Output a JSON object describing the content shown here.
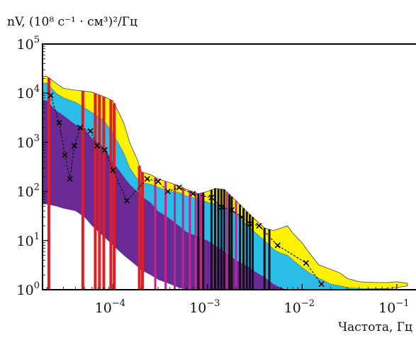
{
  "chart_data": {
    "type": "area",
    "ylabel": "nV, (10⁸ с⁻¹ · см³)²/Гц",
    "xlabel": "Частота, Гц",
    "x_scale": "log",
    "y_scale": "log",
    "xlim": [
      1.8e-05,
      0.2
    ],
    "ylim": [
      1,
      100000
    ],
    "x_ticks": [
      {
        "value": 0.0001,
        "label": "10",
        "exp": "−4"
      },
      {
        "value": 0.001,
        "label": "10",
        "exp": "−3"
      },
      {
        "value": 0.01,
        "label": "10",
        "exp": "−2"
      },
      {
        "value": 0.1,
        "label": "10",
        "exp": "−1"
      }
    ],
    "y_ticks": [
      {
        "value": 1,
        "label": "10",
        "exp": "0"
      },
      {
        "value": 10,
        "label": "10",
        "exp": "1"
      },
      {
        "value": 100,
        "label": "10",
        "exp": "2"
      },
      {
        "value": 1000,
        "label": "10",
        "exp": "3"
      },
      {
        "value": 10000,
        "label": "10",
        "exp": "4"
      },
      {
        "value": 100000,
        "label": "10",
        "exp": "5"
      }
    ],
    "grid": false,
    "colors": {
      "yellow": "#fff200",
      "cyan": "#29bde8",
      "purple": "#6a2a96",
      "red": "#e21c24",
      "magenta": "#c2268e",
      "black": "#111111"
    },
    "bands": [
      {
        "color": "yellow",
        "upper": [
          [
            1.8e-05,
            22000
          ],
          [
            2e-05,
            22000
          ],
          [
            2.5e-05,
            16000
          ],
          [
            3e-05,
            12500
          ],
          [
            4e-05,
            11500
          ],
          [
            5e-05,
            11000
          ],
          [
            6e-05,
            10500
          ],
          [
            8e-05,
            8500
          ],
          [
            0.0001,
            7000
          ],
          [
            0.00013,
            2500
          ],
          [
            0.00015,
            1000
          ],
          [
            0.00018,
            450
          ],
          [
            0.0002,
            250
          ],
          [
            0.00025,
            220
          ],
          [
            0.0003,
            180
          ],
          [
            0.0004,
            150
          ],
          [
            0.0005,
            130
          ],
          [
            0.0006,
            110
          ],
          [
            0.0008,
            90
          ],
          [
            0.001,
            100
          ],
          [
            0.0012,
            115
          ],
          [
            0.0015,
            110
          ],
          [
            0.002,
            65
          ],
          [
            0.0025,
            42
          ],
          [
            0.003,
            30
          ],
          [
            0.004,
            18
          ],
          [
            0.005,
            16
          ],
          [
            0.006,
            18
          ],
          [
            0.007,
            20
          ],
          [
            0.008,
            14
          ],
          [
            0.01,
            9
          ],
          [
            0.012,
            5.5
          ],
          [
            0.015,
            3.2
          ],
          [
            0.02,
            2.6
          ],
          [
            0.025,
            2.2
          ],
          [
            0.03,
            1.7
          ],
          [
            0.04,
            1.45
          ],
          [
            0.06,
            1.4
          ],
          [
            0.08,
            1.4
          ],
          [
            0.1,
            1.45
          ],
          [
            0.13,
            1.35
          ]
        ],
        "lower": [
          [
            1.8e-05,
            16000
          ],
          [
            2e-05,
            16000
          ],
          [
            2.5e-05,
            10000
          ],
          [
            3e-05,
            8000
          ],
          [
            4e-05,
            6500
          ],
          [
            5e-05,
            5000
          ],
          [
            6e-05,
            4000
          ],
          [
            8e-05,
            2800
          ],
          [
            0.0001,
            1500
          ],
          [
            0.00013,
            600
          ],
          [
            0.00015,
            300
          ],
          [
            0.00018,
            180
          ],
          [
            0.0002,
            150
          ],
          [
            0.00025,
            140
          ],
          [
            0.0003,
            120
          ],
          [
            0.0004,
            100
          ],
          [
            0.0005,
            95
          ],
          [
            0.0006,
            80
          ],
          [
            0.0008,
            70
          ],
          [
            0.001,
            60
          ],
          [
            0.0012,
            55
          ],
          [
            0.0015,
            48
          ],
          [
            0.002,
            35
          ],
          [
            0.0025,
            22
          ],
          [
            0.003,
            16
          ],
          [
            0.004,
            10
          ],
          [
            0.005,
            6.5
          ],
          [
            0.006,
            5.5
          ],
          [
            0.007,
            5
          ],
          [
            0.008,
            4
          ],
          [
            0.01,
            2.8
          ],
          [
            0.012,
            2.2
          ],
          [
            0.015,
            1.7
          ],
          [
            0.02,
            1.3
          ],
          [
            0.025,
            1.2
          ],
          [
            0.03,
            1.1
          ],
          [
            0.04,
            1.05
          ],
          [
            0.06,
            1.05
          ],
          [
            0.08,
            1.05
          ],
          [
            0.1,
            1.1
          ],
          [
            0.13,
            1.2
          ]
        ]
      },
      {
        "color": "cyan",
        "upper": [
          [
            1.8e-05,
            16000
          ],
          [
            2e-05,
            16000
          ],
          [
            2.5e-05,
            10000
          ],
          [
            3e-05,
            8000
          ],
          [
            4e-05,
            6500
          ],
          [
            5e-05,
            5000
          ],
          [
            6e-05,
            4000
          ],
          [
            8e-05,
            2800
          ],
          [
            0.0001,
            1500
          ],
          [
            0.00013,
            600
          ],
          [
            0.00015,
            300
          ],
          [
            0.00018,
            180
          ],
          [
            0.0002,
            150
          ],
          [
            0.00025,
            140
          ],
          [
            0.0003,
            120
          ],
          [
            0.0004,
            100
          ],
          [
            0.0005,
            95
          ],
          [
            0.0006,
            80
          ],
          [
            0.0008,
            70
          ],
          [
            0.001,
            60
          ],
          [
            0.0012,
            55
          ],
          [
            0.0015,
            48
          ],
          [
            0.002,
            35
          ],
          [
            0.0025,
            22
          ],
          [
            0.003,
            16
          ],
          [
            0.004,
            10
          ],
          [
            0.005,
            6.5
          ],
          [
            0.006,
            5.5
          ],
          [
            0.007,
            5
          ],
          [
            0.008,
            4
          ],
          [
            0.01,
            2.8
          ],
          [
            0.012,
            2.2
          ],
          [
            0.015,
            1.7
          ],
          [
            0.02,
            1.3
          ],
          [
            0.025,
            1.2
          ],
          [
            0.03,
            1.1
          ],
          [
            0.04,
            1.05
          ],
          [
            0.06,
            1.05
          ]
        ],
        "lower": [
          [
            1.8e-05,
            5000
          ],
          [
            2e-05,
            5000
          ],
          [
            2.5e-05,
            3500
          ],
          [
            3e-05,
            2500
          ],
          [
            4e-05,
            1900
          ],
          [
            5e-05,
            1600
          ],
          [
            6e-05,
            1000
          ],
          [
            8e-05,
            700
          ],
          [
            0.0001,
            350
          ],
          [
            0.00013,
            180
          ],
          [
            0.00015,
            130
          ],
          [
            0.00018,
            100
          ],
          [
            0.0002,
            80
          ],
          [
            0.00025,
            60
          ],
          [
            0.0003,
            40
          ],
          [
            0.0004,
            28
          ],
          [
            0.0005,
            20
          ],
          [
            0.0006,
            15
          ],
          [
            0.0008,
            12
          ],
          [
            0.001,
            10
          ],
          [
            0.0012,
            8
          ],
          [
            0.0015,
            6
          ],
          [
            0.002,
            4
          ],
          [
            0.0025,
            3.2
          ],
          [
            0.003,
            2.5
          ],
          [
            0.004,
            1.8
          ],
          [
            0.005,
            1.3
          ],
          [
            0.006,
            1.1
          ],
          [
            0.007,
            1.02
          ],
          [
            0.008,
            1.0
          ],
          [
            0.01,
            1.0
          ],
          [
            0.012,
            1.0
          ],
          [
            0.015,
            1.0
          ],
          [
            0.02,
            1.0
          ],
          [
            0.025,
            1.0
          ],
          [
            0.03,
            1.0
          ],
          [
            0.04,
            1.0
          ],
          [
            0.06,
            1.0
          ]
        ]
      },
      {
        "color": "purple",
        "upper": [
          [
            1.8e-05,
            7000
          ],
          [
            2e-05,
            7000
          ],
          [
            2.5e-05,
            4500
          ],
          [
            3e-05,
            3500
          ],
          [
            4e-05,
            2300
          ],
          [
            5e-05,
            1900
          ],
          [
            6e-05,
            1200
          ],
          [
            8e-05,
            800
          ],
          [
            0.0001,
            400
          ],
          [
            0.00013,
            200
          ],
          [
            0.00015,
            140
          ],
          [
            0.00018,
            100
          ],
          [
            0.0002,
            80
          ],
          [
            0.00025,
            60
          ],
          [
            0.0003,
            40
          ],
          [
            0.0004,
            28
          ],
          [
            0.0005,
            20
          ],
          [
            0.0006,
            15
          ],
          [
            0.0008,
            12
          ],
          [
            0.001,
            10
          ],
          [
            0.0012,
            8
          ],
          [
            0.0015,
            6
          ],
          [
            0.002,
            4
          ],
          [
            0.0025,
            3.2
          ],
          [
            0.003,
            2.5
          ],
          [
            0.004,
            1.8
          ],
          [
            0.005,
            1.3
          ],
          [
            0.006,
            1.1
          ],
          [
            0.007,
            1.0
          ]
        ],
        "lower": [
          [
            1.8e-05,
            55
          ],
          [
            2e-05,
            55
          ],
          [
            2.5e-05,
            50
          ],
          [
            3e-05,
            45
          ],
          [
            4e-05,
            40
          ],
          [
            5e-05,
            30
          ],
          [
            6e-05,
            20
          ],
          [
            8e-05,
            12
          ],
          [
            0.0001,
            8
          ],
          [
            0.00013,
            5
          ],
          [
            0.00015,
            4
          ],
          [
            0.00018,
            3
          ],
          [
            0.0002,
            2.5
          ],
          [
            0.00025,
            2
          ],
          [
            0.0003,
            1.6
          ],
          [
            0.0004,
            1.3
          ],
          [
            0.0005,
            1.1
          ],
          [
            0.0006,
            1.0
          ],
          [
            0.0008,
            1.0
          ],
          [
            0.001,
            1.0
          ],
          [
            0.0012,
            1.0
          ],
          [
            0.0015,
            1.0
          ],
          [
            0.002,
            1.0
          ],
          [
            0.0025,
            1.0
          ],
          [
            0.003,
            1.0
          ],
          [
            0.004,
            1.0
          ],
          [
            0.005,
            1.0
          ],
          [
            0.006,
            1.0
          ],
          [
            0.007,
            1.0
          ]
        ]
      }
    ],
    "series": [
      {
        "color": "black",
        "marker": "x",
        "dashed": true,
        "points": [
          [
            2.2e-05,
            9000
          ],
          [
            2.7e-05,
            2500
          ],
          [
            3.1e-05,
            550
          ],
          [
            3.5e-05,
            180
          ],
          [
            3.9e-05,
            850
          ],
          [
            4.5e-05,
            2000
          ],
          [
            5.8e-05,
            1700
          ],
          [
            6.8e-05,
            850
          ],
          [
            8.2e-05,
            700
          ],
          [
            0.0001,
            270
          ],
          [
            0.00014,
            65
          ],
          [
            0.00023,
            180
          ],
          [
            0.0003,
            160
          ],
          [
            0.00038,
            100
          ],
          [
            0.0005,
            120
          ],
          [
            0.0007,
            90
          ],
          [
            0.0011,
            75
          ],
          [
            0.0014,
            48
          ],
          [
            0.0018,
            42
          ],
          [
            0.0023,
            30
          ],
          [
            0.0028,
            22
          ],
          [
            0.0035,
            20
          ],
          [
            0.0055,
            8
          ],
          [
            0.011,
            3.5
          ],
          [
            0.016,
            1.3
          ]
        ]
      }
    ],
    "vlines": [
      {
        "color": "red",
        "x": [
          2.1e-05,
          4.8e-05,
          6.5e-05,
          7.2e-05,
          8e-05,
          9.5e-05,
          0.000103,
          0.00019,
          0.000205
        ]
      },
      {
        "color": "magenta",
        "x": [
          0.00028,
          0.00036,
          0.00045,
          0.00055,
          0.00065,
          0.00075,
          0.00085,
          0.0009,
          0.0014,
          0.0016,
          0.002,
          0.0024
        ]
      },
      {
        "color": "black",
        "x": [
          0.0008,
          0.0009,
          0.0011,
          0.0012,
          0.0013,
          0.0014,
          0.0015,
          0.0017,
          0.0018,
          0.0022,
          0.0024,
          0.0026,
          0.0028,
          0.003,
          0.004,
          0.0045
        ]
      }
    ]
  }
}
